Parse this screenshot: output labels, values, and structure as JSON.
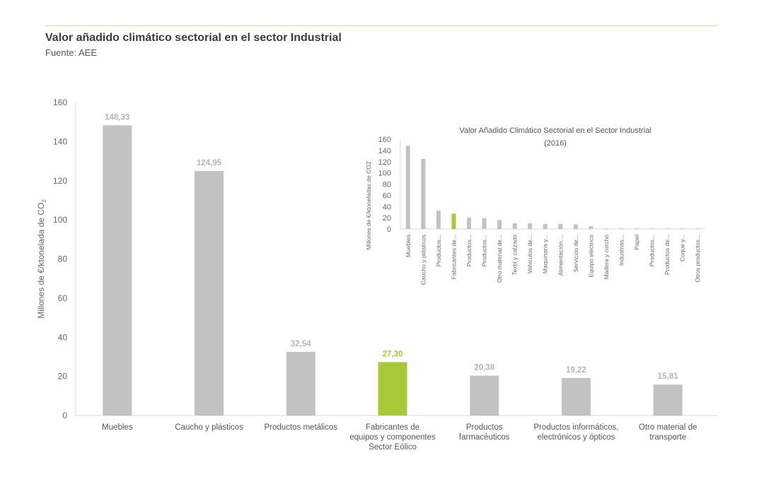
{
  "header": {
    "title": "Valor añadido climático sectorial en el sector Industrial",
    "source": "Fuente: AEE"
  },
  "colors": {
    "bar": "#c2c2c2",
    "highlight": "#a8c837",
    "axis": "#d9d9d9"
  },
  "chart_data": [
    {
      "type": "bar",
      "title": "Valor añadido climático sectorial en el sector Industrial",
      "ylabel": "Millones de €/ktonelada de CO",
      "ylabel_sub": "2",
      "xlabel": "",
      "ylim": [
        0,
        160
      ],
      "yticks": [
        0,
        20,
        40,
        60,
        80,
        100,
        120,
        140,
        160
      ],
      "grid": false,
      "categories": [
        [
          "Muebles"
        ],
        [
          "Caucho y plásticos"
        ],
        [
          "Productos metálicos"
        ],
        [
          "Fabricantes de",
          "equipos y componentes",
          "Sector Eólico"
        ],
        [
          "Productos",
          "farmacéuticos"
        ],
        [
          "Productos informáticos,",
          "electrónicos y ópticos"
        ],
        [
          "Otro material de",
          "transporte"
        ]
      ],
      "values": [
        148.33,
        124.95,
        32.54,
        27.3,
        20.38,
        19.22,
        15.81
      ],
      "value_labels": [
        "148,33",
        "124,95",
        "32,54",
        "27,30",
        "20,38",
        "19,22",
        "15,81"
      ],
      "highlight_index": 3
    },
    {
      "type": "bar",
      "title": "Valor Añadido Climático Sectorial en el Sector Industrial",
      "subtitle": "(2016)",
      "ylabel": "Millones de €/ktoneladas de CO2",
      "ylim": [
        0,
        160
      ],
      "yticks": [
        0,
        20,
        40,
        60,
        80,
        100,
        120,
        140,
        160
      ],
      "grid": false,
      "categories": [
        "Muebles",
        "Caucho y plásticos",
        "Productos...",
        "Fabricantes de...",
        "Productos...",
        "Productos...",
        "Otro material de...",
        "Textil y calzado",
        "Vehiculos de...",
        "Maquinaria y...",
        "Alimentación....",
        "Servicios de...",
        "Equipo eléctrico",
        "Madera y corcho",
        "Industrias...",
        "Papel",
        "Productos...",
        "Productos de...",
        "Coque y...",
        "Otros productos..."
      ],
      "values": [
        148.33,
        124.95,
        32.54,
        27.3,
        20.38,
        19.22,
        15.81,
        10,
        10,
        9,
        9,
        8,
        5,
        1,
        1,
        1,
        1,
        1,
        1,
        1
      ],
      "highlight_index": 3
    }
  ]
}
